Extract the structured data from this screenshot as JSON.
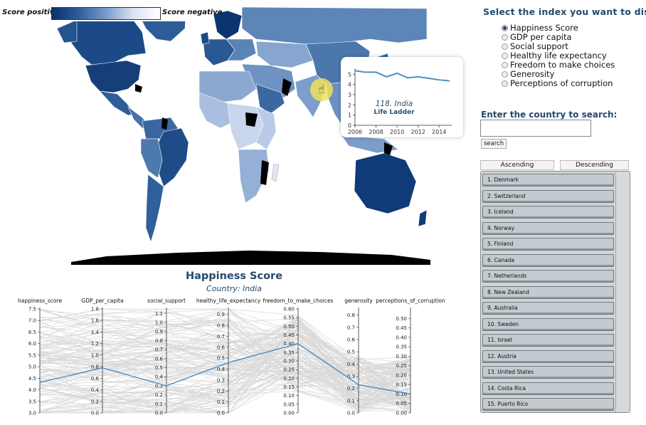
{
  "legend": {
    "left_label": "Score positive",
    "right_label": "Score negative"
  },
  "tooltip": {
    "country": "118. India",
    "metric": "Life Ladder",
    "series": {
      "x": [
        2006,
        2007,
        2008,
        2009,
        2010,
        2011,
        2012,
        2013,
        2014,
        2015
      ],
      "y": [
        5.35,
        5.2,
        5.2,
        4.75,
        5.1,
        4.65,
        4.75,
        4.6,
        4.45,
        4.35
      ]
    },
    "x_ticks": [
      "2006",
      "2008",
      "2010",
      "2012",
      "2014"
    ],
    "y_ticks": [
      "0",
      "1",
      "2",
      "3",
      "4",
      "5"
    ],
    "color": "#4a90c2"
  },
  "panel": {
    "title": "Select the index you want to display:",
    "options": [
      {
        "label": "Happiness Score",
        "checked": true
      },
      {
        "label": "GDP per capita",
        "checked": false
      },
      {
        "label": "Social support",
        "checked": false
      },
      {
        "label": "Healthy life expectancy",
        "checked": false
      },
      {
        "label": "Freedom to make choices",
        "checked": false
      },
      {
        "label": "Generosity",
        "checked": false
      },
      {
        "label": "Perceptions of corruption",
        "checked": false
      }
    ],
    "search_label": "Enter the country to search:",
    "search_value": "",
    "search_button": "search",
    "ascending": "Ascending",
    "descending": "Descending",
    "countries": [
      "1. Denmark",
      "2. Switzerland",
      "3. Iceland",
      "4. Norway",
      "5. Finland",
      "6. Canada",
      "7. Netherlands",
      "8. New Zealand",
      "9. Australia",
      "10. Sweden",
      "11. Israel",
      "12. Austria",
      "13. United States",
      "14. Costa Rica",
      "15. Puerto Rico"
    ]
  },
  "chart": {
    "title": "Happiness Score",
    "subtitle": "Country: India"
  },
  "chart_data": {
    "type": "parallel-coordinates",
    "axes": [
      {
        "name": "happiness_score",
        "ticks": [
          "7.5",
          "7.0",
          "6.5",
          "6.0",
          "5.5",
          "5.0",
          "4.5",
          "4.0",
          "3.5",
          "3.0"
        ],
        "range": [
          3.0,
          7.5
        ]
      },
      {
        "name": "GDP_per_capita",
        "ticks": [
          "1.8",
          "1.6",
          "1.4",
          "1.2",
          "1.0",
          "0.8",
          "0.6",
          "0.4",
          "0.2",
          "0.0"
        ],
        "range": [
          0.0,
          1.8
        ]
      },
      {
        "name": "social_support",
        "ticks": [
          "1.1",
          "1.0",
          "0.9",
          "0.8",
          "0.7",
          "0.6",
          "0.5",
          "0.4",
          "0.3",
          "0.2",
          "0.1",
          "0.0"
        ],
        "range": [
          0.0,
          1.15
        ]
      },
      {
        "name": "healthy_life_expectancy",
        "ticks": [
          "0.9",
          "0.8",
          "0.7",
          "0.6",
          "0.5",
          "0.4",
          "0.3",
          "0.2",
          "0.1",
          "0.0"
        ],
        "range": [
          0.0,
          0.95
        ]
      },
      {
        "name": "freedom_to_make_choices",
        "ticks": [
          "0.60",
          "0.55",
          "0.50",
          "0.45",
          "0.40",
          "0.35",
          "0.30",
          "0.25",
          "0.20",
          "0.15",
          "0.10",
          "0.05",
          "0.00"
        ],
        "range": [
          0.0,
          0.6
        ]
      },
      {
        "name": "generosity",
        "ticks": [
          "0.8",
          "0.7",
          "0.6",
          "0.5",
          "0.4",
          "0.3",
          "0.2",
          "0.1",
          "0.0"
        ],
        "range": [
          0.0,
          0.85
        ]
      },
      {
        "name": "perceptions_of_corruption",
        "ticks": [
          "0.50",
          "0.45",
          "0.40",
          "0.35",
          "0.30",
          "0.25",
          "0.20",
          "0.15",
          "0.10",
          "0.05",
          "0.00"
        ],
        "range": [
          0.0,
          0.55
        ]
      }
    ],
    "highlight": {
      "name": "India",
      "values": [
        4.32,
        0.78,
        0.3,
        0.46,
        0.4,
        0.23,
        0.1
      ],
      "color": "#4a8cc4"
    },
    "background_color": "#d8d8d8"
  }
}
